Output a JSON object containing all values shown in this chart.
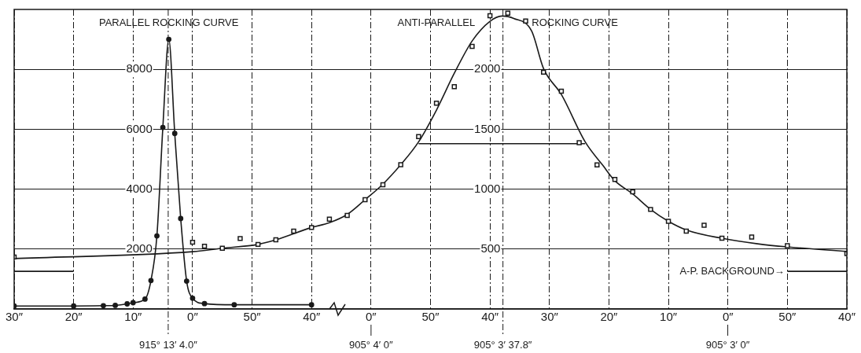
{
  "chart_data": {
    "type": "line",
    "line_style": "solid",
    "grid": true,
    "legend": false,
    "categories": [
      "30″",
      null,
      null,
      null,
      null,
      null,
      null,
      null,
      null,
      null,
      "20″",
      null,
      null,
      null,
      null,
      null,
      null,
      null,
      null,
      null,
      "10″",
      null,
      null,
      null,
      null,
      null,
      null,
      null,
      null,
      null,
      "0″",
      null,
      null,
      null,
      null,
      null,
      null,
      null,
      null,
      null,
      "50″",
      null,
      null,
      null,
      null,
      null,
      null,
      null,
      null,
      null,
      "40″",
      null,
      null,
      null,
      null,
      null,
      null,
      null,
      null,
      null,
      "0″",
      null,
      null,
      null,
      null,
      null,
      null,
      null,
      null,
      null,
      "50″",
      null,
      null,
      null,
      null,
      null,
      null,
      null,
      null,
      null,
      "40″",
      null,
      null,
      null,
      null,
      null,
      null,
      null,
      null,
      null,
      "30″",
      null,
      null,
      null,
      null,
      null,
      null,
      null,
      null,
      null,
      "20″",
      null,
      null,
      null,
      null,
      null,
      null,
      null,
      null,
      null,
      "10″",
      null,
      null,
      null,
      null,
      null,
      null,
      null,
      null,
      null,
      "0″",
      null,
      null,
      null,
      null,
      null,
      null,
      null,
      null,
      null,
      "50″",
      null,
      null,
      null,
      null,
      null,
      null,
      null,
      null,
      null,
      "40″"
    ],
    "ylim": [
      0,
      10000
    ],
    "yticks": [
      2000,
      4000,
      6000,
      8000
    ],
    "y2lim": [
      0,
      2500
    ],
    "y2ticks": [
      500,
      1000,
      1500,
      2000
    ],
    "series": [
      {
        "name": "PARALLEL ROCKING CURVE",
        "marker": "circle",
        "color": "#1a1a1a",
        "values": [
          100,
          null,
          null,
          null,
          null,
          null,
          null,
          null,
          null,
          null,
          100,
          null,
          null,
          null,
          null,
          110,
          null,
          120,
          null,
          170,
          210,
          null,
          330,
          950,
          2440,
          6060,
          9000,
          5860,
          3020,
          930,
          360,
          null,
          180,
          null,
          null,
          null,
          null,
          140,
          null,
          null,
          null,
          null,
          null,
          null,
          null,
          null,
          null,
          null,
          null,
          null,
          140,
          null,
          null,
          null,
          null,
          null,
          null,
          null,
          null,
          null,
          null,
          null,
          null,
          null,
          null,
          null,
          null,
          null,
          null,
          null,
          null,
          null,
          null,
          null,
          null,
          null,
          null,
          null,
          null,
          null,
          null,
          null,
          null,
          null,
          null,
          null,
          null,
          null,
          null,
          null,
          null,
          null,
          null,
          null,
          null,
          null,
          null,
          null,
          null,
          null,
          null,
          null,
          null,
          null,
          null,
          null,
          null,
          null,
          null,
          null,
          null,
          null,
          null,
          null,
          null,
          null,
          null,
          null,
          null,
          null,
          null,
          null,
          null,
          null,
          null,
          null,
          null,
          null,
          null,
          null,
          null,
          null,
          null,
          null,
          null,
          null,
          null,
          null,
          null,
          null,
          null
        ]
      },
      {
        "type": "scatter",
        "marker": "square",
        "axis": "y2",
        "color": "#1a1a1a",
        "values": [
          434,
          null,
          null,
          null,
          null,
          null,
          null,
          null,
          null,
          null,
          null,
          null,
          null,
          null,
          null,
          null,
          null,
          null,
          null,
          null,
          null,
          null,
          null,
          null,
          null,
          null,
          null,
          null,
          null,
          null,
          557,
          null,
          524,
          null,
          null,
          507,
          null,
          null,
          588,
          null,
          null,
          539,
          null,
          null,
          577,
          null,
          null,
          649,
          null,
          null,
          680,
          null,
          null,
          750,
          null,
          null,
          781,
          null,
          null,
          912,
          null,
          null,
          1037,
          null,
          null,
          1204,
          null,
          null,
          1439,
          null,
          null,
          1717,
          null,
          null,
          1855,
          null,
          null,
          2191,
          null,
          null,
          2447,
          null,
          null,
          2469,
          null,
          null,
          2403,
          null,
          null,
          1976,
          null,
          null,
          1818,
          null,
          null,
          1388,
          null,
          null,
          1202,
          null,
          null,
          1081,
          null,
          null,
          978,
          null,
          null,
          831,
          null,
          null,
          732,
          null,
          null,
          649,
          null,
          null,
          699,
          null,
          null,
          590,
          null,
          null,
          null,
          null,
          601,
          null,
          null,
          null,
          null,
          null,
          528,
          null,
          null,
          null,
          null,
          null,
          null,
          null,
          null,
          null,
          462
        ]
      },
      {
        "name": "ANTI-PARALLEL ROCKING CURVE",
        "marker": "none",
        "axis": "y2",
        "color": "#1a1a1a",
        "values": [
          421,
          null,
          null,
          null,
          null,
          null,
          null,
          null,
          null,
          null,
          null,
          null,
          null,
          null,
          null,
          null,
          null,
          null,
          null,
          null,
          null,
          null,
          null,
          null,
          null,
          null,
          null,
          null,
          null,
          null,
          478,
          null,
          null,
          null,
          null,
          507,
          null,
          null,
          null,
          null,
          null,
          539,
          null,
          null,
          577,
          null,
          null,
          null,
          null,
          null,
          680,
          null,
          null,
          720,
          null,
          null,
          789,
          null,
          null,
          912,
          null,
          null,
          1042,
          null,
          null,
          1204,
          null,
          null,
          1395,
          null,
          null,
          1660,
          null,
          null,
          1967,
          null,
          null,
          2237,
          null,
          null,
          2401,
          null,
          2445,
          null,
          2425,
          null,
          null,
          2320,
          null,
          2007,
          null,
          null,
          1790,
          null,
          null,
          null,
          1395,
          null,
          null,
          1197,
          null,
          1070,
          null,
          null,
          960,
          null,
          null,
          831,
          null,
          null,
          732,
          null,
          null,
          660,
          null,
          null,
          null,
          null,
          null,
          590,
          null,
          null,
          null,
          null,
          null,
          544,
          null,
          null,
          null,
          null,
          518,
          null,
          null,
          null,
          null,
          null,
          null,
          null,
          null,
          null,
          480
        ]
      },
      {
        "marker": "none",
        "axis": "y2",
        "color": "#1a1a1a",
        "values": [
          314,
          null,
          null,
          null,
          null,
          null,
          null,
          null,
          null,
          null,
          314,
          null,
          null,
          null,
          null,
          null,
          null,
          null,
          null,
          null,
          null,
          null,
          null,
          null,
          null,
          null,
          null,
          null,
          null,
          null,
          null,
          null,
          null,
          null,
          null,
          null,
          null,
          null,
          null,
          null,
          null,
          null,
          null,
          null,
          null,
          null,
          null,
          null,
          null,
          null,
          null,
          null,
          null,
          null,
          null,
          null,
          null,
          null,
          null,
          null,
          null,
          null,
          null,
          null,
          null,
          null,
          null,
          null,
          null,
          null,
          null,
          null,
          null,
          null,
          null,
          null,
          null,
          null,
          null,
          null,
          null,
          null,
          null,
          null,
          null,
          null,
          null,
          null,
          null,
          null,
          null,
          null,
          null,
          null,
          null,
          null,
          null,
          null,
          null,
          null,
          null,
          null,
          null,
          null,
          null,
          null,
          null,
          null,
          null,
          null,
          null,
          null,
          null,
          null,
          null,
          null,
          null,
          null,
          null,
          null,
          null,
          null,
          null,
          null,
          null,
          null,
          null,
          null,
          null,
          null,
          null,
          null,
          null,
          null,
          null,
          null,
          null,
          null,
          null,
          null,
          null
        ]
      },
      {
        "marker": "none",
        "axis": "y2",
        "color": "#1a1a1a",
        "values": [
          null,
          null,
          null,
          null,
          null,
          null,
          null,
          null,
          null,
          null,
          null,
          null,
          null,
          null,
          null,
          null,
          null,
          null,
          null,
          null,
          null,
          null,
          null,
          null,
          null,
          null,
          null,
          null,
          null,
          null,
          null,
          null,
          null,
          null,
          null,
          null,
          null,
          null,
          null,
          null,
          null,
          null,
          null,
          null,
          null,
          null,
          null,
          null,
          null,
          null,
          null,
          null,
          null,
          null,
          null,
          null,
          null,
          null,
          null,
          null,
          null,
          null,
          null,
          null,
          null,
          null,
          null,
          null,
          1380,
          null,
          null,
          null,
          null,
          null,
          null,
          null,
          null,
          null,
          null,
          null,
          null,
          null,
          null,
          null,
          null,
          null,
          null,
          null,
          null,
          null,
          null,
          null,
          null,
          null,
          null,
          null,
          1380,
          null,
          null,
          null,
          null,
          null,
          null,
          null,
          null,
          null,
          null,
          null,
          null,
          null,
          null,
          null,
          null,
          null,
          null,
          null,
          null,
          null,
          null,
          null,
          null,
          null,
          null,
          null,
          null,
          null,
          null,
          null,
          null,
          null,
          null,
          null,
          null,
          null,
          null,
          null,
          null,
          null,
          null,
          null,
          null
        ]
      },
      {
        "marker": "none",
        "axis": "y2",
        "color": "#1a1a1a",
        "values": [
          null,
          null,
          null,
          null,
          null,
          null,
          null,
          null,
          null,
          null,
          null,
          null,
          null,
          null,
          null,
          null,
          null,
          null,
          null,
          null,
          null,
          null,
          null,
          null,
          null,
          null,
          null,
          null,
          null,
          null,
          null,
          null,
          null,
          null,
          null,
          null,
          null,
          null,
          null,
          null,
          null,
          null,
          null,
          null,
          null,
          null,
          null,
          null,
          null,
          null,
          null,
          null,
          null,
          null,
          null,
          null,
          null,
          null,
          null,
          null,
          null,
          null,
          null,
          null,
          null,
          null,
          null,
          null,
          null,
          null,
          null,
          null,
          null,
          null,
          null,
          null,
          null,
          null,
          null,
          null,
          null,
          null,
          null,
          null,
          null,
          null,
          null,
          null,
          null,
          null,
          null,
          null,
          null,
          null,
          null,
          null,
          null,
          null,
          null,
          null,
          null,
          null,
          null,
          null,
          null,
          null,
          null,
          null,
          null,
          null,
          null,
          null,
          null,
          null,
          null,
          null,
          null,
          null,
          null,
          null,
          null,
          null,
          null,
          null,
          null,
          null,
          null,
          null,
          null,
          null,
          314,
          null,
          null,
          null,
          null,
          null,
          null,
          null,
          null,
          null,
          314
        ]
      }
    ],
    "annotations": [
      "A-P. BACKGROUND→",
      "915° 13′ 4.0″",
      "905° 4′ 0″",
      "905° 3′ 37.8″",
      "905° 3′ 0″"
    ]
  }
}
